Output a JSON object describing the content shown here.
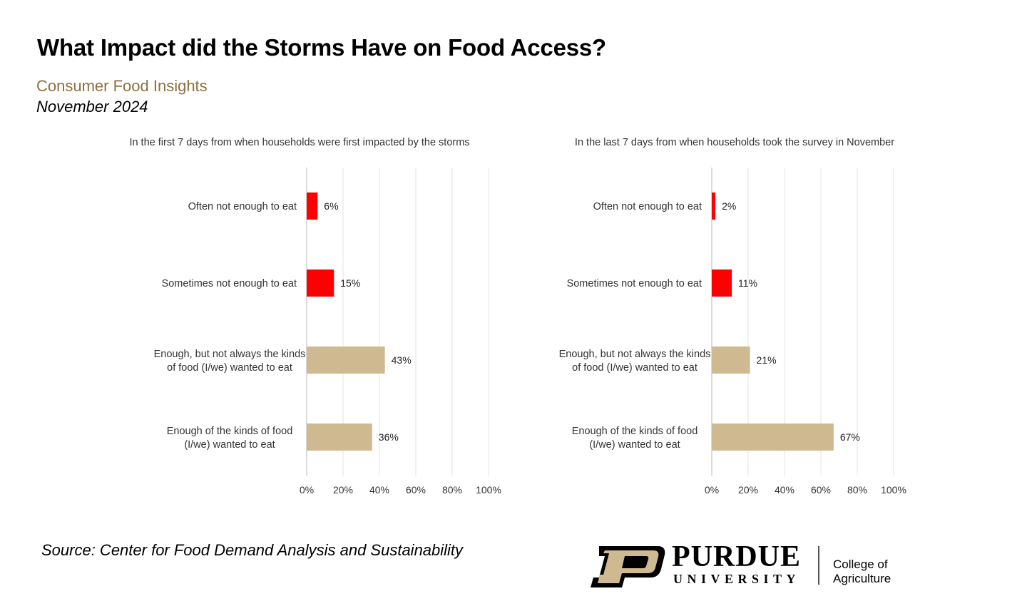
{
  "title": "What Impact did the Storms Have on Food Access?",
  "subtitle": "Consumer Food Insights",
  "date": "November 2024",
  "source": "Source:  Center for Food Demand Analysis and Sustainability",
  "logo": {
    "wordmark": "PURDUE",
    "university": "UNIVERSITY",
    "college": "College of Agriculture",
    "colors": {
      "gold": "#cfb991",
      "black": "#000000"
    }
  },
  "colors": {
    "red": "#ff0000",
    "tan": "#cfb991",
    "subtitle": "#8e6f3e",
    "grid": "#e3e3e3"
  },
  "chart_data": [
    {
      "type": "bar",
      "orientation": "horizontal",
      "title": "In the first 7 days from when households were first impacted by the storms",
      "categories": [
        "Often not enough to eat",
        "Sometimes not enough to eat",
        "Enough, but not always the kinds of food (I/we) wanted to eat",
        "Enough of the kinds of food (I/we) wanted to eat"
      ],
      "values": [
        6,
        15,
        43,
        36
      ],
      "value_labels": [
        "6%",
        "15%",
        "43%",
        "36%"
      ],
      "bar_colors": [
        "#ff0000",
        "#ff0000",
        "#cfb991",
        "#cfb991"
      ],
      "xlim": [
        0,
        100
      ],
      "xticks": [
        "0%",
        "20%",
        "40%",
        "60%",
        "80%",
        "100%"
      ],
      "xlabel": "",
      "ylabel": ""
    },
    {
      "type": "bar",
      "orientation": "horizontal",
      "title": "In the last 7 days from when households took the survey in November",
      "categories": [
        "Often not enough to eat",
        "Sometimes not enough to eat",
        "Enough, but not always the kinds of food (I/we) wanted to eat",
        "Enough of the kinds of food (I/we) wanted to eat"
      ],
      "values": [
        2,
        11,
        21,
        67
      ],
      "value_labels": [
        "2%",
        "11%",
        "21%",
        "67%"
      ],
      "bar_colors": [
        "#ff0000",
        "#ff0000",
        "#cfb991",
        "#cfb991"
      ],
      "xlim": [
        0,
        100
      ],
      "xticks": [
        "0%",
        "20%",
        "40%",
        "60%",
        "80%",
        "100%"
      ],
      "xlabel": "",
      "ylabel": ""
    }
  ]
}
